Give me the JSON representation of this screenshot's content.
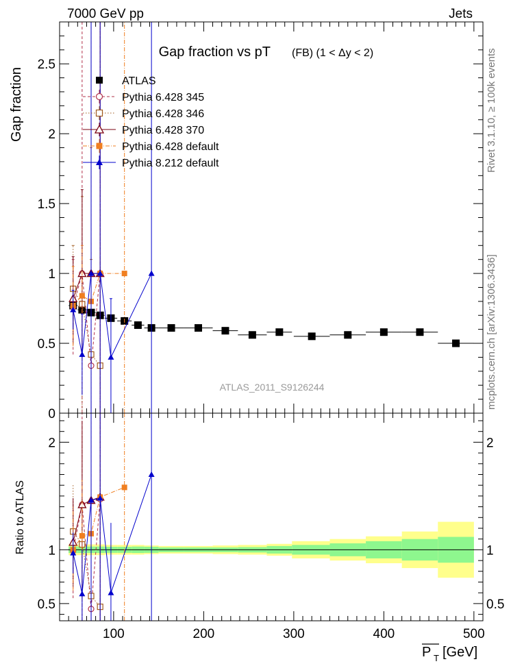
{
  "header": {
    "left": "7000 GeV pp",
    "right": "Jets"
  },
  "side_labels": {
    "rivet": "Rivet 3.1.10, ≥ 100k events",
    "mcplots": "mcplots.cern.ch [arXiv:1306.3436]"
  },
  "colors": {
    "data": "#000000",
    "p345": "#b0304a",
    "p346": "#a05a1e",
    "p370": "#7a0010",
    "p6def": "#f07f20",
    "p8def": "#0000cc",
    "band_inner": "#8ef78e",
    "band_outer": "#ffff8c"
  },
  "chart_data": [
    {
      "type": "scatter",
      "title": "Gap fraction vs pT",
      "title_suffix": "(FB) (1 < Δy < 2)",
      "ylabel": "Gap fraction",
      "watermark": "ATLAS_2011_S9126244",
      "xlim": [
        40,
        510
      ],
      "ylim": [
        0,
        2.8
      ],
      "yticks": [
        0,
        0.5,
        1,
        1.5,
        2,
        2.5
      ],
      "ytick_labels": [
        "0",
        "0.5",
        "1",
        "1.5",
        "2",
        "2.5"
      ],
      "series": [
        {
          "key": "data",
          "name": "ATLAS",
          "marker": "square-filled",
          "x": [
            55,
            65,
            75,
            85,
            97,
            112,
            127,
            142,
            164,
            194,
            224,
            254,
            284,
            320,
            360,
            400,
            440,
            480
          ],
          "xerr": [
            5,
            5,
            5,
            5,
            7,
            8,
            7,
            8,
            14,
            16,
            14,
            16,
            14,
            20,
            20,
            20,
            20,
            20
          ],
          "y": [
            0.77,
            0.74,
            0.72,
            0.7,
            0.68,
            0.66,
            0.63,
            0.61,
            0.61,
            0.61,
            0.59,
            0.56,
            0.58,
            0.55,
            0.56,
            0.58,
            0.58,
            0.5
          ],
          "yerr": [
            0.02,
            0.02,
            0.02,
            0.02,
            0.02,
            0.02,
            0.02,
            0.02,
            0.01,
            0.01,
            0.01,
            0.01,
            0.01,
            0.01,
            0.01,
            0.01,
            0.01,
            0.01
          ]
        },
        {
          "key": "p345",
          "name": "Pythia 6.428 345",
          "marker": "circle-open",
          "dash": "4,3",
          "x": [
            55,
            65,
            75,
            85
          ],
          "y": [
            0.76,
            1.0,
            0.34,
            1.0
          ],
          "ylow": [
            0.42,
            0.0,
            0.0,
            0.0
          ],
          "yhigh": [
            1.1,
            2.8,
            2.8,
            2.8
          ]
        },
        {
          "key": "p346",
          "name": "Pythia 6.428 346",
          "marker": "square-open",
          "dash": "1.5,2.5",
          "x": [
            55,
            65,
            75,
            85
          ],
          "y": [
            0.89,
            0.78,
            0.42,
            0.34
          ],
          "ylow": [
            0.58,
            0.0,
            0.0,
            0.0
          ],
          "yhigh": [
            1.2,
            1.55,
            1.1,
            2.8
          ]
        },
        {
          "key": "p370",
          "name": "Pythia 6.428 370",
          "marker": "triangle-open",
          "dash": "",
          "x": [
            55,
            65,
            75,
            85
          ],
          "y": [
            0.82,
            1.0,
            1.0,
            1.0
          ],
          "ylow": [
            0.5,
            0.4,
            0.0,
            0.0
          ],
          "yhigh": [
            1.12,
            1.6,
            2.8,
            2.8
          ]
        },
        {
          "key": "p6def",
          "name": "Pythia 6.428 default",
          "marker": "square-filled",
          "dash": "6,2,1,2",
          "x": [
            55,
            65,
            75,
            85,
            112
          ],
          "y": [
            0.77,
            0.84,
            0.8,
            1.0,
            1.0
          ],
          "ylow": [
            0.48,
            0.5,
            0.0,
            0.0,
            0.0
          ],
          "yhigh": [
            1.05,
            1.2,
            1.9,
            2.8,
            2.8
          ]
        },
        {
          "key": "p8def",
          "name": "Pythia 8.212 default",
          "marker": "triangle-filled",
          "dash": "",
          "x": [
            55,
            65,
            75,
            85,
            97,
            142
          ],
          "y": [
            0.74,
            0.42,
            1.0,
            1.0,
            0.4,
            1.0
          ],
          "ylow": [
            0.6,
            0.13,
            0.0,
            0.0,
            0.0,
            0.0
          ],
          "yhigh": [
            0.88,
            0.71,
            2.8,
            2.8,
            0.82,
            2.8
          ]
        }
      ]
    },
    {
      "type": "scatter",
      "ylabel": "Ratio to ATLAS",
      "xlabel": "P̅T [GeV]",
      "xlabel_main": "P",
      "xlabel_sub": "T",
      "xlabel_unit": "[GeV]",
      "xlim": [
        40,
        510
      ],
      "ylim": [
        0.34,
        2.27
      ],
      "yticks": [
        0.5,
        1,
        2
      ],
      "ytick_labels": [
        "0.5",
        "1",
        "2"
      ],
      "xticks": [
        100,
        200,
        300,
        400,
        500
      ],
      "xtick_labels": [
        "100",
        "200",
        "300",
        "400",
        "500"
      ],
      "band_edges": [
        50,
        60,
        70,
        80,
        90,
        104,
        120,
        134,
        150,
        178,
        210,
        238,
        270,
        298,
        340,
        380,
        420,
        460,
        500
      ],
      "band_inner": [
        0.03,
        0.03,
        0.03,
        0.03,
        0.03,
        0.028,
        0.028,
        0.03,
        0.028,
        0.022,
        0.022,
        0.022,
        0.025,
        0.035,
        0.045,
        0.06,
        0.08,
        0.1,
        0.12
      ],
      "band_outer": [
        0.05,
        0.05,
        0.05,
        0.05,
        0.05,
        0.045,
        0.045,
        0.045,
        0.04,
        0.035,
        0.035,
        0.04,
        0.045,
        0.055,
        0.08,
        0.1,
        0.125,
        0.17,
        0.26
      ],
      "series": [
        {
          "key": "p345",
          "x": [
            55,
            65,
            75,
            85
          ],
          "y": [
            0.99,
            1.42,
            0.45,
            1.47
          ],
          "ylow": [
            0.55,
            0.0,
            0.0,
            0.0
          ],
          "yhigh": [
            1.45,
            2.5,
            2.5,
            2.5
          ]
        },
        {
          "key": "p346",
          "x": [
            55,
            65,
            75,
            85
          ],
          "y": [
            1.17,
            1.05,
            0.57,
            0.47
          ],
          "ylow": [
            0.75,
            0.0,
            0.0,
            0.0
          ],
          "yhigh": [
            1.6,
            2.1,
            1.5,
            2.5
          ]
        },
        {
          "key": "p370",
          "x": [
            55,
            65,
            75,
            85
          ],
          "y": [
            1.07,
            1.42,
            1.46,
            1.49
          ],
          "ylow": [
            0.66,
            0.55,
            0.0,
            0.0
          ],
          "yhigh": [
            1.48,
            2.2,
            2.5,
            2.5
          ]
        },
        {
          "key": "p6def",
          "x": [
            55,
            65,
            75,
            85,
            112
          ],
          "y": [
            1.0,
            1.13,
            1.15,
            1.49,
            1.58
          ],
          "ylow": [
            0.62,
            0.65,
            0.0,
            0.0,
            0.0
          ],
          "yhigh": [
            1.4,
            1.65,
            2.5,
            2.5,
            2.5
          ]
        },
        {
          "key": "p8def",
          "x": [
            55,
            65,
            75,
            85,
            97,
            142
          ],
          "y": [
            0.97,
            0.59,
            1.46,
            1.48,
            0.6,
            1.7
          ],
          "ylow": [
            0.78,
            0.18,
            0.0,
            0.0,
            0.0,
            0.0
          ],
          "yhigh": [
            1.16,
            1.0,
            2.5,
            2.5,
            1.25,
            2.5
          ]
        }
      ]
    }
  ]
}
